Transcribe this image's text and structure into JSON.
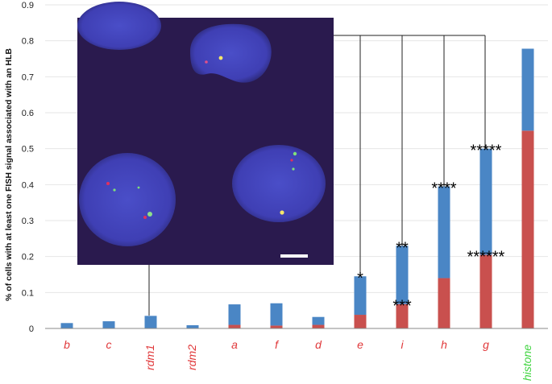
{
  "chart_data": {
    "type": "bar",
    "stacked": true,
    "ylabel": "% of cells with at least one FISH signal associated with an HLB",
    "ylim": [
      0,
      0.9
    ],
    "yticks": [
      "0",
      "0.1",
      "0.2",
      "0.3",
      "0.4",
      "0.5",
      "0.6",
      "0.7",
      "0.8",
      "0.9"
    ],
    "categories": [
      "b",
      "c",
      "rdm1",
      "rdm2",
      "a",
      "f",
      "d",
      "e",
      "i",
      "h",
      "g",
      "histone"
    ],
    "category_colors": [
      "#e0383a",
      "#e0383a",
      "#e0383a",
      "#e0383a",
      "#e0383a",
      "#e0383a",
      "#e0383a",
      "#e0383a",
      "#e0383a",
      "#e0383a",
      "#e0383a",
      "#3fd43f"
    ],
    "series": [
      {
        "color": "#c9504e",
        "values": [
          0,
          0,
          0,
          0,
          0.01,
          0.008,
          0.01,
          0.038,
          0.068,
          0.14,
          0.205,
          0.55
        ]
      },
      {
        "color": "#4a86c5",
        "values": [
          0.015,
          0.02,
          0.035,
          0.009,
          0.057,
          0.062,
          0.022,
          0.107,
          0.162,
          0.255,
          0.295,
          0.228
        ]
      }
    ],
    "annotations": [
      {
        "category": "e",
        "y": 0.145,
        "text": "*"
      },
      {
        "category": "i",
        "y": 0.23,
        "text": "**"
      },
      {
        "category": "i",
        "y": 0.068,
        "text": "***"
      },
      {
        "category": "h",
        "y": 0.395,
        "text": "****"
      },
      {
        "category": "g",
        "y": 0.5,
        "text": "*****"
      },
      {
        "category": "g",
        "y": 0.205,
        "text": "******"
      }
    ],
    "inset_scale_bar": true
  }
}
